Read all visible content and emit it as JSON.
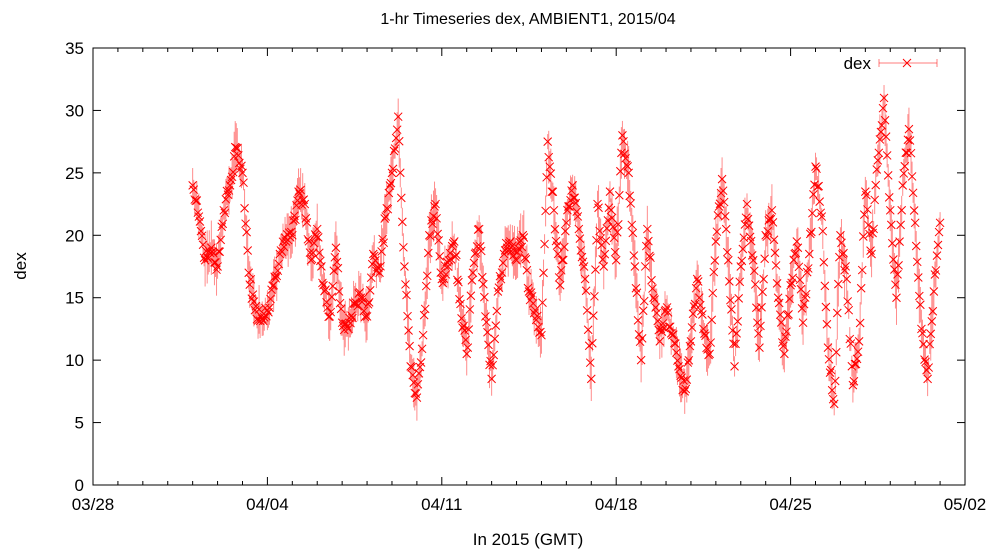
{
  "chart_data": {
    "type": "scatter",
    "title": "1-hr Timeseries dex, AMBIENT1, 2015/04",
    "xlabel": "In 2015 (GMT)",
    "ylabel": "dex",
    "xlim": [
      "2015-03-28",
      "2015-05-02"
    ],
    "ylim": [
      0,
      35
    ],
    "x_ticks": [
      "03/28",
      "04/04",
      "04/11",
      "04/18",
      "04/25",
      "05/02"
    ],
    "y_ticks": [
      "0",
      "5",
      "10",
      "15",
      "20",
      "25",
      "30",
      "35"
    ],
    "legend": {
      "position": "top-right",
      "entries": [
        "dex"
      ]
    },
    "grid": false,
    "marker": "x",
    "error_bars": true,
    "color": "#ff0000",
    "series": [
      {
        "name": "dex",
        "points": [
          [
            "2015-04-01 00:00",
            24.0
          ],
          [
            "2015-04-01 06:00",
            21.5
          ],
          [
            "2015-04-01 12:00",
            18.0
          ],
          [
            "2015-04-01 18:00",
            19.0
          ],
          [
            "2015-04-02 00:00",
            17.5
          ],
          [
            "2015-04-02 06:00",
            22.0
          ],
          [
            "2015-04-02 12:00",
            24.0
          ],
          [
            "2015-04-02 18:00",
            27.0
          ],
          [
            "2015-04-03 00:00",
            25.0
          ],
          [
            "2015-04-03 06:00",
            17.0
          ],
          [
            "2015-04-03 12:00",
            14.0
          ],
          [
            "2015-04-03 18:00",
            13.5
          ],
          [
            "2015-04-04 00:00",
            14.0
          ],
          [
            "2015-04-04 06:00",
            16.0
          ],
          [
            "2015-04-04 12:00",
            18.5
          ],
          [
            "2015-04-04 18:00",
            19.5
          ],
          [
            "2015-04-05 00:00",
            20.0
          ],
          [
            "2015-04-05 06:00",
            23.5
          ],
          [
            "2015-04-05 12:00",
            22.5
          ],
          [
            "2015-04-05 18:00",
            18.0
          ],
          [
            "2015-04-06 00:00",
            20.5
          ],
          [
            "2015-04-06 06:00",
            16.0
          ],
          [
            "2015-04-06 12:00",
            13.5
          ],
          [
            "2015-04-06 18:00",
            19.0
          ],
          [
            "2015-04-07 00:00",
            13.0
          ],
          [
            "2015-04-07 06:00",
            12.5
          ],
          [
            "2015-04-07 12:00",
            14.5
          ],
          [
            "2015-04-07 18:00",
            15.0
          ],
          [
            "2015-04-08 00:00",
            13.5
          ],
          [
            "2015-04-08 06:00",
            18.5
          ],
          [
            "2015-04-08 12:00",
            17.0
          ],
          [
            "2015-04-08 18:00",
            21.5
          ],
          [
            "2015-04-09 00:00",
            25.0
          ],
          [
            "2015-04-09 06:00",
            29.5
          ],
          [
            "2015-04-09 12:00",
            17.5
          ],
          [
            "2015-04-09 18:00",
            9.5
          ],
          [
            "2015-04-10 00:00",
            7.0
          ],
          [
            "2015-04-10 06:00",
            12.0
          ],
          [
            "2015-04-10 12:00",
            20.0
          ],
          [
            "2015-04-10 18:00",
            22.5
          ],
          [
            "2015-04-11 00:00",
            16.5
          ],
          [
            "2015-04-11 06:00",
            17.5
          ],
          [
            "2015-04-11 12:00",
            19.5
          ],
          [
            "2015-04-11 18:00",
            14.5
          ],
          [
            "2015-04-12 00:00",
            10.5
          ],
          [
            "2015-04-12 06:00",
            17.0
          ],
          [
            "2015-04-12 12:00",
            20.5
          ],
          [
            "2015-04-12 18:00",
            13.5
          ],
          [
            "2015-04-13 00:00",
            8.5
          ],
          [
            "2015-04-13 06:00",
            15.5
          ],
          [
            "2015-04-13 12:00",
            18.5
          ],
          [
            "2015-04-13 18:00",
            19.5
          ],
          [
            "2015-04-14 00:00",
            18.0
          ],
          [
            "2015-04-14 06:00",
            20.0
          ],
          [
            "2015-04-14 12:00",
            15.5
          ],
          [
            "2015-04-14 18:00",
            14.0
          ],
          [
            "2015-04-15 00:00",
            12.0
          ],
          [
            "2015-04-15 06:00",
            27.5
          ],
          [
            "2015-04-15 12:00",
            22.0
          ],
          [
            "2015-04-15 18:00",
            16.0
          ],
          [
            "2015-04-16 00:00",
            21.0
          ],
          [
            "2015-04-16 06:00",
            24.0
          ],
          [
            "2015-04-16 12:00",
            20.5
          ],
          [
            "2015-04-16 18:00",
            16.5
          ],
          [
            "2015-04-17 00:00",
            8.5
          ],
          [
            "2015-04-17 06:00",
            22.5
          ],
          [
            "2015-04-17 12:00",
            17.5
          ],
          [
            "2015-04-17 18:00",
            23.5
          ],
          [
            "2015-04-18 00:00",
            18.0
          ],
          [
            "2015-04-18 06:00",
            28.0
          ],
          [
            "2015-04-18 12:00",
            25.0
          ],
          [
            "2015-04-18 18:00",
            17.5
          ],
          [
            "2015-04-19 00:00",
            10.0
          ],
          [
            "2015-04-19 06:00",
            20.5
          ],
          [
            "2015-04-19 12:00",
            15.0
          ],
          [
            "2015-04-19 18:00",
            11.5
          ],
          [
            "2015-04-20 00:00",
            14.0
          ],
          [
            "2015-04-20 06:00",
            12.0
          ],
          [
            "2015-04-20 12:00",
            9.5
          ],
          [
            "2015-04-20 18:00",
            7.5
          ],
          [
            "2015-04-21 00:00",
            11.5
          ],
          [
            "2015-04-21 06:00",
            16.5
          ],
          [
            "2015-04-21 12:00",
            12.5
          ],
          [
            "2015-04-21 18:00",
            10.5
          ],
          [
            "2015-04-22 00:00",
            19.5
          ],
          [
            "2015-04-22 06:00",
            24.5
          ],
          [
            "2015-04-22 12:00",
            18.0
          ],
          [
            "2015-04-22 18:00",
            9.5
          ],
          [
            "2015-04-23 00:00",
            17.5
          ],
          [
            "2015-04-23 06:00",
            22.5
          ],
          [
            "2015-04-23 12:00",
            18.0
          ],
          [
            "2015-04-23 18:00",
            11.0
          ],
          [
            "2015-04-24 00:00",
            20.0
          ],
          [
            "2015-04-24 06:00",
            22.0
          ],
          [
            "2015-04-24 12:00",
            15.0
          ],
          [
            "2015-04-24 18:00",
            10.5
          ],
          [
            "2015-04-25 00:00",
            16.0
          ],
          [
            "2015-04-25 06:00",
            19.5
          ],
          [
            "2015-04-25 12:00",
            13.0
          ],
          [
            "2015-04-25 18:00",
            18.5
          ],
          [
            "2015-04-26 00:00",
            25.5
          ],
          [
            "2015-04-26 06:00",
            21.5
          ],
          [
            "2015-04-26 12:00",
            11.0
          ],
          [
            "2015-04-26 18:00",
            6.5
          ],
          [
            "2015-04-27 00:00",
            20.0
          ],
          [
            "2015-04-27 06:00",
            16.5
          ],
          [
            "2015-04-27 12:00",
            8.0
          ],
          [
            "2015-04-27 18:00",
            11.5
          ],
          [
            "2015-04-28 00:00",
            23.5
          ],
          [
            "2015-04-28 06:00",
            18.5
          ],
          [
            "2015-04-28 12:00",
            26.0
          ],
          [
            "2015-04-28 18:00",
            31.0
          ],
          [
            "2015-04-29 00:00",
            22.0
          ],
          [
            "2015-04-29 06:00",
            15.0
          ],
          [
            "2015-04-29 12:00",
            24.0
          ],
          [
            "2015-04-29 18:00",
            28.5
          ],
          [
            "2015-04-30 00:00",
            21.0
          ],
          [
            "2015-04-30 06:00",
            12.5
          ],
          [
            "2015-04-30 12:00",
            8.5
          ],
          [
            "2015-04-30 18:00",
            15.5
          ],
          [
            "2015-05-01 00:00",
            21.0
          ]
        ]
      }
    ]
  }
}
